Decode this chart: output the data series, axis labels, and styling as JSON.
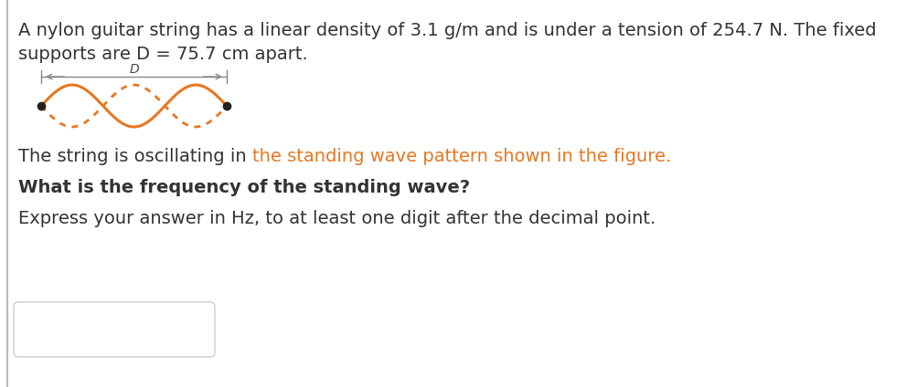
{
  "bg_color": "#ffffff",
  "border_color": "#cccccc",
  "text_color_dark": "#333333",
  "text_color_orange": "#e87722",
  "line1": "A nylon guitar string has a linear density of 3.1 g/m and is under a tension of 254.7 N. The fixed",
  "line2": "supports are D = 75.7 cm apart.",
  "line3_dark": "The string is oscillating in ",
  "line3_orange": "the standing wave pattern shown in the figure.",
  "line4": "What is the frequency of the standing wave?",
  "line5": "Express your answer in Hz, to at least one digit after the decimal point.",
  "wave_color": "#e87722",
  "n_loops": 3,
  "fig_width": 9.91,
  "fig_height": 4.24
}
